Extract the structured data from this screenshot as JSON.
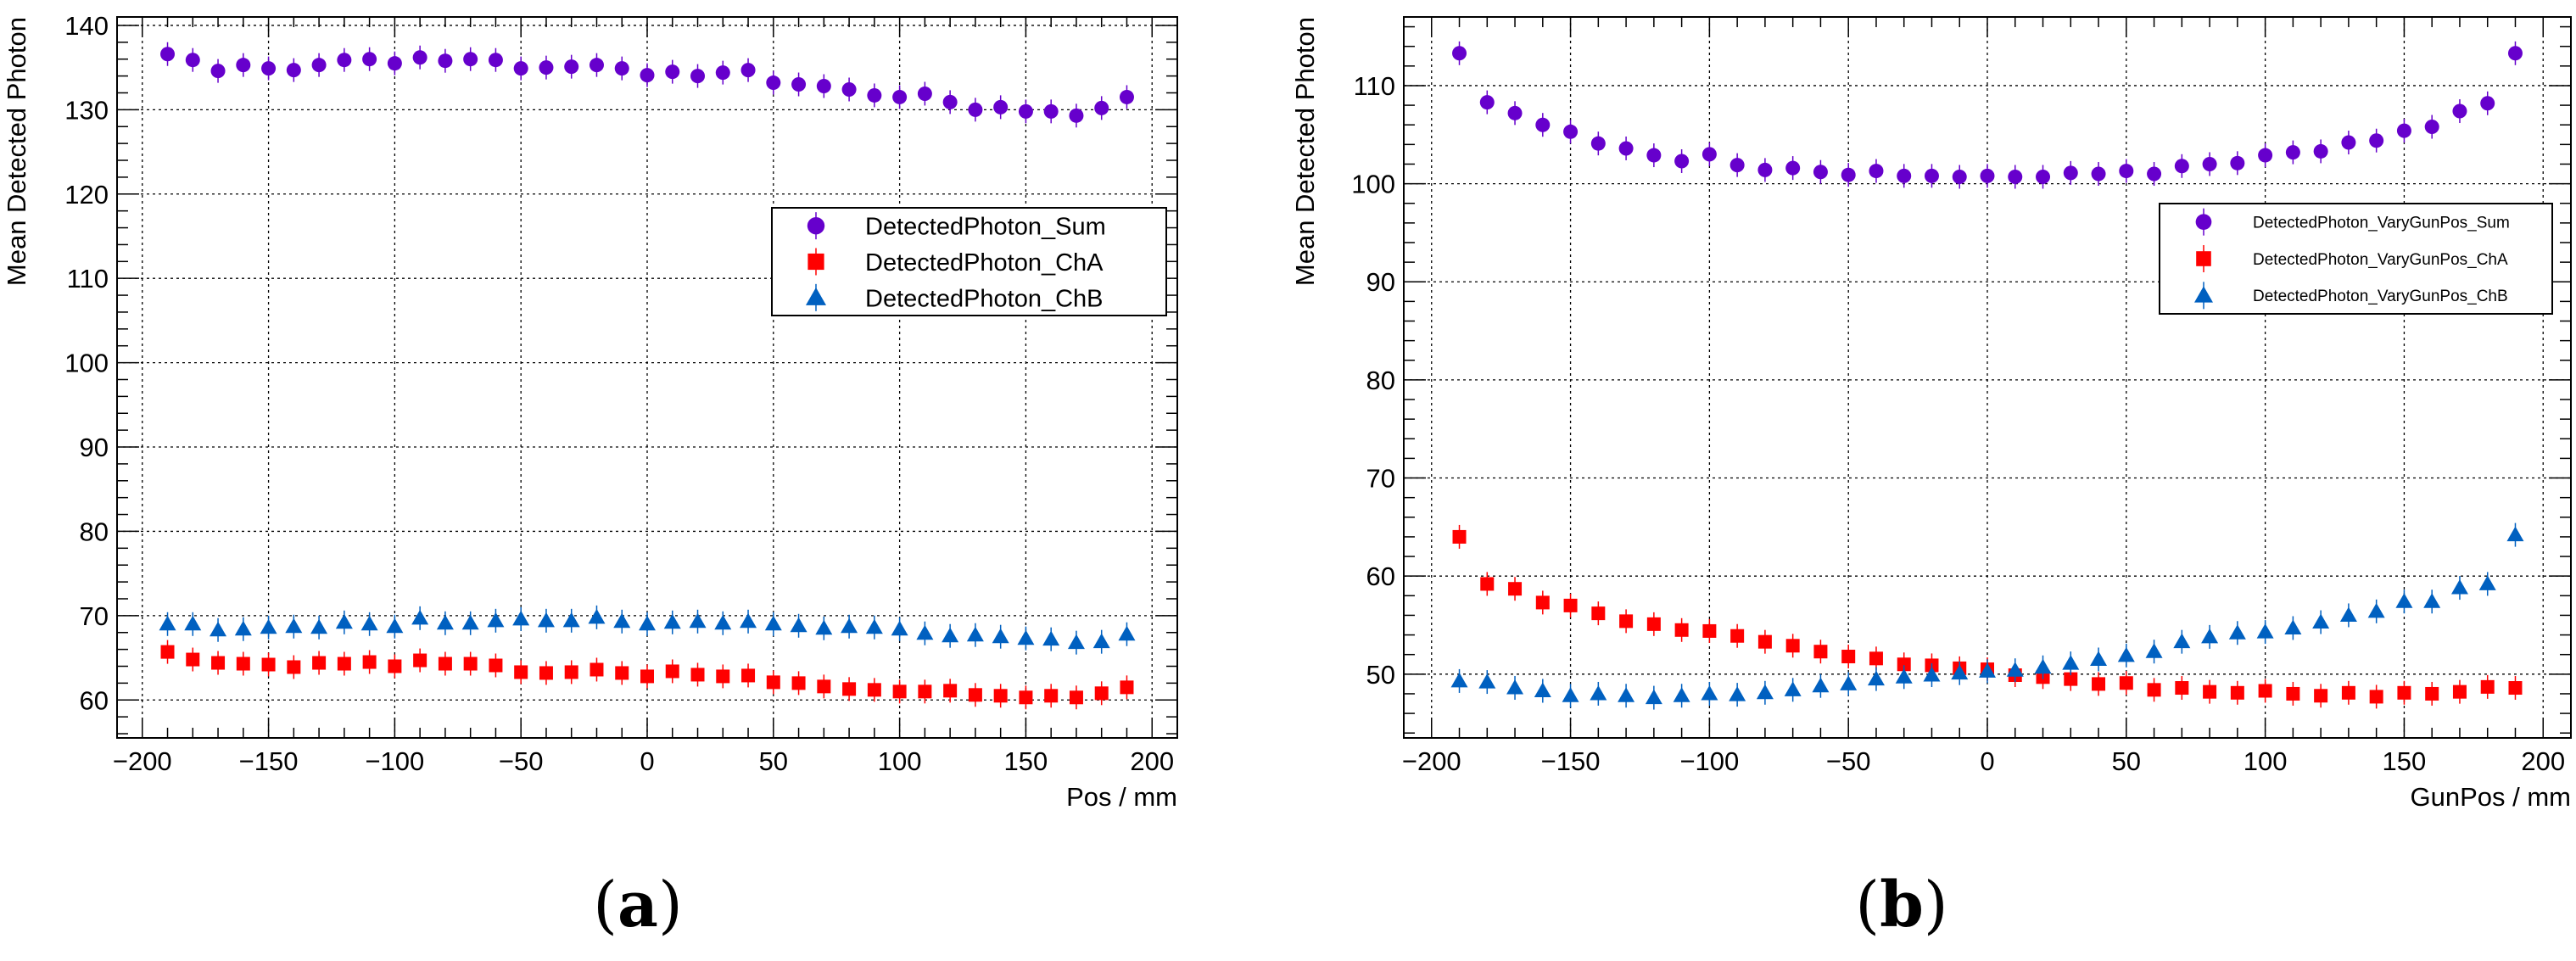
{
  "chart_data": [
    {
      "type": "scatter",
      "panel_caption": "a",
      "xlabel": "Pos / mm",
      "ylabel": "Mean Detected Photon",
      "xlim": [
        -210,
        210
      ],
      "ylim": [
        55.5,
        141
      ],
      "xticks": [
        -200,
        -150,
        -100,
        -50,
        0,
        50,
        100,
        150,
        200
      ],
      "yticks": [
        60,
        70,
        80,
        90,
        100,
        110,
        120,
        130,
        140
      ],
      "grid": true,
      "legend_position": "right",
      "x": [
        -190,
        -180,
        -170,
        -160,
        -150,
        -140,
        -130,
        -120,
        -110,
        -100,
        -90,
        -80,
        -70,
        -60,
        -50,
        -40,
        -30,
        -20,
        -10,
        0,
        10,
        20,
        30,
        40,
        50,
        60,
        70,
        80,
        90,
        100,
        110,
        120,
        130,
        140,
        150,
        160,
        170,
        180,
        190
      ],
      "series": [
        {
          "name": "DetectedPhoton_Sum",
          "marker": "circle",
          "color": "#6600cc",
          "values": [
            136.6,
            135.9,
            134.6,
            135.3,
            134.9,
            134.7,
            135.3,
            135.9,
            136.0,
            135.5,
            136.2,
            135.8,
            136.0,
            135.9,
            134.9,
            135.0,
            135.1,
            135.3,
            134.9,
            134.1,
            134.5,
            134.0,
            134.4,
            134.7,
            133.2,
            133.0,
            132.8,
            132.4,
            131.7,
            131.5,
            131.9,
            130.9,
            130.0,
            130.3,
            129.8,
            129.8,
            129.3,
            130.2,
            131.5
          ]
        },
        {
          "name": "DetectedPhoton_ChA",
          "marker": "square",
          "color": "#ff0000",
          "values": [
            65.7,
            64.8,
            64.4,
            64.3,
            64.2,
            63.9,
            64.4,
            64.3,
            64.5,
            64.0,
            64.7,
            64.3,
            64.3,
            64.1,
            63.3,
            63.2,
            63.3,
            63.6,
            63.2,
            62.8,
            63.4,
            63.0,
            62.8,
            62.9,
            62.1,
            62.0,
            61.6,
            61.3,
            61.2,
            61.0,
            61.0,
            61.1,
            60.6,
            60.5,
            60.3,
            60.5,
            60.3,
            60.8,
            61.5
          ]
        },
        {
          "name": "DetectedPhoton_ChB",
          "marker": "triangle",
          "color": "#0060c0",
          "values": [
            69.0,
            69.0,
            68.3,
            68.4,
            68.6,
            68.7,
            68.6,
            69.2,
            69.0,
            68.7,
            69.7,
            69.1,
            69.1,
            69.4,
            69.6,
            69.4,
            69.4,
            69.8,
            69.3,
            69.0,
            69.2,
            69.3,
            69.1,
            69.3,
            69.0,
            68.8,
            68.5,
            68.7,
            68.6,
            68.4,
            67.9,
            67.6,
            67.7,
            67.5,
            67.3,
            67.2,
            66.8,
            66.9,
            67.8
          ]
        }
      ]
    },
    {
      "type": "scatter",
      "panel_caption": "b",
      "xlabel": "GunPos / mm",
      "ylabel": "Mean Detected Photon",
      "xlim": [
        -210,
        210
      ],
      "ylim": [
        43.5,
        117
      ],
      "xticks": [
        -200,
        -150,
        -100,
        -50,
        0,
        50,
        100,
        150,
        200
      ],
      "yticks": [
        50,
        60,
        70,
        80,
        90,
        100,
        110
      ],
      "grid": true,
      "legend_position": "right",
      "x": [
        -190,
        -180,
        -170,
        -160,
        -150,
        -140,
        -130,
        -120,
        -110,
        -100,
        -90,
        -80,
        -70,
        -60,
        -50,
        -40,
        -30,
        -20,
        -10,
        0,
        10,
        20,
        30,
        40,
        50,
        60,
        70,
        80,
        90,
        100,
        110,
        120,
        130,
        140,
        150,
        160,
        170,
        180,
        190
      ],
      "series": [
        {
          "name": "DetectedPhoton_VaryGunPos_Sum",
          "marker": "circle",
          "color": "#6600cc",
          "values": [
            113.3,
            108.3,
            107.2,
            106.0,
            105.3,
            104.1,
            103.6,
            102.9,
            102.3,
            103.0,
            101.9,
            101.4,
            101.6,
            101.2,
            100.9,
            101.3,
            100.8,
            100.8,
            100.7,
            100.8,
            100.7,
            100.7,
            101.1,
            101.0,
            101.3,
            101.0,
            101.8,
            102.0,
            102.1,
            102.9,
            103.2,
            103.3,
            104.2,
            104.4,
            105.4,
            105.8,
            107.4,
            108.2,
            113.3
          ]
        },
        {
          "name": "DetectedPhoton_VaryGunPos_ChA",
          "marker": "square",
          "color": "#ff0000",
          "values": [
            64.0,
            59.2,
            58.7,
            57.3,
            57.0,
            56.2,
            55.4,
            55.1,
            54.5,
            54.4,
            53.9,
            53.3,
            52.9,
            52.3,
            51.8,
            51.6,
            51.0,
            50.9,
            50.6,
            50.5,
            49.9,
            49.7,
            49.5,
            49.0,
            49.1,
            48.4,
            48.6,
            48.2,
            48.1,
            48.3,
            48.0,
            47.8,
            48.1,
            47.7,
            48.1,
            48.0,
            48.2,
            48.7,
            48.6
          ]
        },
        {
          "name": "DetectedPhoton_VaryGunPos_ChB",
          "marker": "triangle",
          "color": "#0060c0",
          "values": [
            49.3,
            49.2,
            48.6,
            48.3,
            47.8,
            48.0,
            47.8,
            47.6,
            47.8,
            48.0,
            47.9,
            48.1,
            48.4,
            48.8,
            49.0,
            49.5,
            49.7,
            49.9,
            50.1,
            50.3,
            50.4,
            50.7,
            51.1,
            51.5,
            51.9,
            52.3,
            53.3,
            53.8,
            54.2,
            54.3,
            54.7,
            55.3,
            56.0,
            56.4,
            57.4,
            57.4,
            58.8,
            59.2,
            64.2
          ]
        }
      ]
    }
  ]
}
